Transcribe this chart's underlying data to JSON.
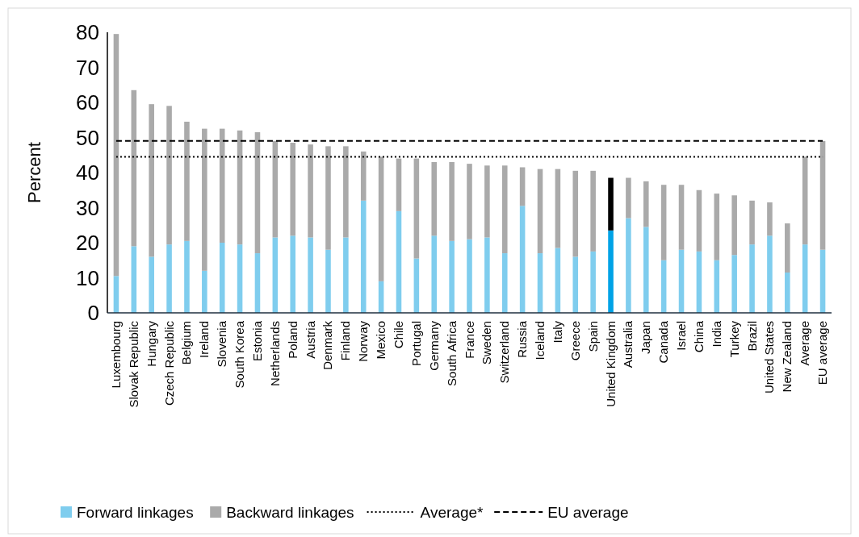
{
  "chart_data": {
    "type": "bar",
    "stacked": true,
    "ylabel": "Percent",
    "categories": [
      "Luxembourg",
      "Slovak Republic",
      "Hungary",
      "Czech Republic",
      "Belgium",
      "Ireland",
      "Slovenia",
      "South Korea",
      "Estonia",
      "Netherlands",
      "Poland",
      "Austria",
      "Denmark",
      "Finland",
      "Norway",
      "Mexico",
      "Chile",
      "Portugal",
      "Germany",
      "South Africa",
      "France",
      "Sweden",
      "Switzerland",
      "Russia",
      "Iceland",
      "Italy",
      "Greece",
      "Spain",
      "United Kingdom",
      "Australia",
      "Japan",
      "Canada",
      "Israel",
      "China",
      "India",
      "Turkey",
      "Brazil",
      "United States",
      "New Zealand",
      "Average",
      "EU average"
    ],
    "series": [
      {
        "name": "Forward linkages",
        "color": "#7fcdee",
        "colors": [
          "#7fcdee",
          "#7fcdee",
          "#7fcdee",
          "#7fcdee",
          "#7fcdee",
          "#7fcdee",
          "#7fcdee",
          "#7fcdee",
          "#7fcdee",
          "#7fcdee",
          "#7fcdee",
          "#7fcdee",
          "#7fcdee",
          "#7fcdee",
          "#7fcdee",
          "#7fcdee",
          "#7fcdee",
          "#7fcdee",
          "#7fcdee",
          "#7fcdee",
          "#7fcdee",
          "#7fcdee",
          "#7fcdee",
          "#7fcdee",
          "#7fcdee",
          "#7fcdee",
          "#7fcdee",
          "#7fcdee",
          "#00a2e6",
          "#7fcdee",
          "#7fcdee",
          "#7fcdee",
          "#7fcdee",
          "#7fcdee",
          "#7fcdee",
          "#7fcdee",
          "#7fcdee",
          "#7fcdee",
          "#7fcdee",
          "#7fcdee",
          "#7fcdee"
        ],
        "values": [
          10.5,
          19,
          16,
          19.5,
          20.5,
          12,
          20,
          19.5,
          17,
          21.5,
          22,
          21.5,
          18,
          21.5,
          32,
          9,
          29,
          15.5,
          22,
          20.5,
          21,
          21.5,
          17,
          30.5,
          17,
          18.5,
          16,
          17.5,
          23.5,
          27,
          24.5,
          15,
          18,
          17.5,
          15,
          16.5,
          19.5,
          22,
          11.5,
          19.5,
          18
        ]
      },
      {
        "name": "Backward linkages",
        "color": "#aaaaaa",
        "colors": [
          "#aaaaaa",
          "#aaaaaa",
          "#aaaaaa",
          "#aaaaaa",
          "#aaaaaa",
          "#aaaaaa",
          "#aaaaaa",
          "#aaaaaa",
          "#aaaaaa",
          "#aaaaaa",
          "#aaaaaa",
          "#aaaaaa",
          "#aaaaaa",
          "#aaaaaa",
          "#aaaaaa",
          "#aaaaaa",
          "#aaaaaa",
          "#aaaaaa",
          "#aaaaaa",
          "#aaaaaa",
          "#aaaaaa",
          "#aaaaaa",
          "#aaaaaa",
          "#aaaaaa",
          "#aaaaaa",
          "#aaaaaa",
          "#aaaaaa",
          "#aaaaaa",
          "#000000",
          "#aaaaaa",
          "#aaaaaa",
          "#aaaaaa",
          "#aaaaaa",
          "#aaaaaa",
          "#aaaaaa",
          "#aaaaaa",
          "#aaaaaa",
          "#aaaaaa",
          "#aaaaaa",
          "#aaaaaa",
          "#aaaaaa"
        ],
        "values": [
          69,
          44.5,
          43.5,
          39.5,
          34,
          40.5,
          32.5,
          32.5,
          34.5,
          27.5,
          26.5,
          26.5,
          29.5,
          26,
          14,
          35.5,
          15,
          28.5,
          21,
          22.5,
          21.5,
          20.5,
          25,
          11,
          24,
          22.5,
          24.5,
          23,
          15,
          11.5,
          13,
          21.5,
          18.5,
          17.5,
          19,
          17,
          12.5,
          9.5,
          14,
          25,
          31
        ]
      }
    ],
    "ref_lines": [
      {
        "axis": "y",
        "value": 44.5,
        "label": "Average*",
        "color": "#000000",
        "line_style": "dotted"
      },
      {
        "axis": "y",
        "value": 49,
        "label": "EU average",
        "color": "#000000",
        "line_style": "dashed"
      }
    ],
    "ylim": [
      0,
      80
    ],
    "yticks": [
      0,
      10,
      20,
      30,
      40,
      50,
      60,
      70,
      80
    ],
    "legend": "bottom"
  }
}
